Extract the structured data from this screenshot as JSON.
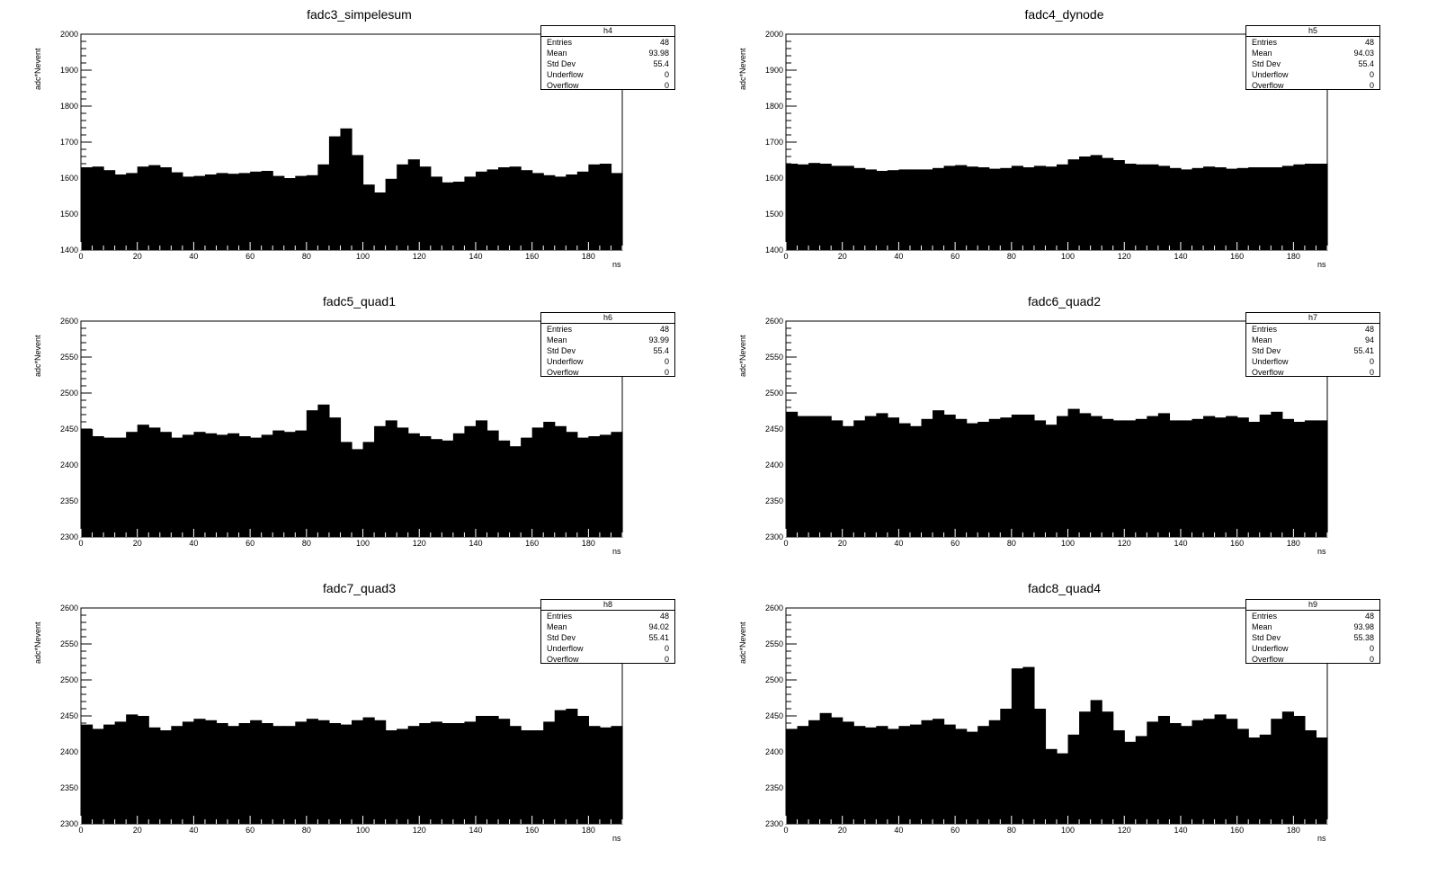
{
  "chart_data": [
    {
      "type": "histogram",
      "title": "fadc3_simpelesum",
      "xlabel": "ns",
      "ylabel": "adc*Nevent",
      "xlim": [
        0,
        192
      ],
      "ylim": [
        1400,
        2000
      ],
      "x_ticks": [
        0,
        20,
        40,
        60,
        80,
        100,
        120,
        140,
        160,
        180
      ],
      "y_ticks": [
        1400,
        1500,
        1600,
        1700,
        1800,
        1900,
        2000
      ],
      "bin_width": 4,
      "values": [
        1630,
        1632,
        1622,
        1610,
        1614,
        1632,
        1636,
        1630,
        1616,
        1604,
        1606,
        1610,
        1614,
        1612,
        1614,
        1618,
        1620,
        1606,
        1600,
        1606,
        1608,
        1638,
        1716,
        1738,
        1664,
        1582,
        1560,
        1598,
        1638,
        1652,
        1632,
        1604,
        1588,
        1590,
        1604,
        1618,
        1624,
        1630,
        1632,
        1622,
        1614,
        1608,
        1604,
        1610,
        1618,
        1638,
        1640,
        1614
      ],
      "stats": {
        "name": "h4",
        "rows": [
          [
            "Entries",
            "48"
          ],
          [
            "Mean",
            "93.98"
          ],
          [
            "Std Dev",
            "55.4"
          ],
          [
            "Underflow",
            "0"
          ],
          [
            "Overflow",
            "0"
          ]
        ]
      }
    },
    {
      "type": "histogram",
      "title": "fadc4_dynode",
      "xlabel": "ns",
      "ylabel": "adc*Nevent",
      "xlim": [
        0,
        192
      ],
      "ylim": [
        1400,
        2000
      ],
      "x_ticks": [
        0,
        20,
        40,
        60,
        80,
        100,
        120,
        140,
        160,
        180
      ],
      "y_ticks": [
        1400,
        1500,
        1600,
        1700,
        1800,
        1900,
        2000
      ],
      "bin_width": 4,
      "values": [
        1640,
        1638,
        1642,
        1640,
        1634,
        1634,
        1628,
        1624,
        1620,
        1622,
        1624,
        1624,
        1624,
        1628,
        1634,
        1636,
        1632,
        1630,
        1626,
        1628,
        1634,
        1630,
        1634,
        1632,
        1638,
        1652,
        1660,
        1664,
        1656,
        1650,
        1640,
        1638,
        1638,
        1634,
        1628,
        1624,
        1628,
        1632,
        1630,
        1626,
        1628,
        1630,
        1630,
        1630,
        1634,
        1638,
        1640,
        1640
      ],
      "stats": {
        "name": "h5",
        "rows": [
          [
            "Entries",
            "48"
          ],
          [
            "Mean",
            "94.03"
          ],
          [
            "Std Dev",
            "55.4"
          ],
          [
            "Underflow",
            "0"
          ],
          [
            "Overflow",
            "0"
          ]
        ]
      }
    },
    {
      "type": "histogram",
      "title": "fadc5_quad1",
      "xlabel": "ns",
      "ylabel": "adc*Nevent",
      "xlim": [
        0,
        192
      ],
      "ylim": [
        2300,
        2600
      ],
      "x_ticks": [
        0,
        20,
        40,
        60,
        80,
        100,
        120,
        140,
        160,
        180
      ],
      "y_ticks": [
        2300,
        2350,
        2400,
        2450,
        2500,
        2550,
        2600
      ],
      "bin_width": 4,
      "values": [
        2450,
        2440,
        2438,
        2438,
        2446,
        2456,
        2452,
        2446,
        2438,
        2442,
        2446,
        2444,
        2442,
        2444,
        2440,
        2438,
        2442,
        2448,
        2446,
        2448,
        2476,
        2484,
        2466,
        2432,
        2422,
        2432,
        2454,
        2462,
        2452,
        2444,
        2440,
        2436,
        2434,
        2444,
        2454,
        2462,
        2448,
        2434,
        2426,
        2438,
        2452,
        2460,
        2454,
        2446,
        2438,
        2440,
        2442,
        2446
      ],
      "stats": {
        "name": "h6",
        "rows": [
          [
            "Entries",
            "48"
          ],
          [
            "Mean",
            "93.99"
          ],
          [
            "Std Dev",
            "55.4"
          ],
          [
            "Underflow",
            "0"
          ],
          [
            "Overflow",
            "0"
          ]
        ]
      }
    },
    {
      "type": "histogram",
      "title": "fadc6_quad2",
      "xlabel": "ns",
      "ylabel": "adc*Nevent",
      "xlim": [
        0,
        192
      ],
      "ylim": [
        2300,
        2600
      ],
      "x_ticks": [
        0,
        20,
        40,
        60,
        80,
        100,
        120,
        140,
        160,
        180
      ],
      "y_ticks": [
        2300,
        2350,
        2400,
        2450,
        2500,
        2550,
        2600
      ],
      "bin_width": 4,
      "values": [
        2474,
        2468,
        2468,
        2468,
        2462,
        2454,
        2462,
        2468,
        2472,
        2466,
        2458,
        2454,
        2464,
        2476,
        2470,
        2464,
        2458,
        2460,
        2464,
        2466,
        2470,
        2470,
        2462,
        2456,
        2468,
        2478,
        2472,
        2468,
        2464,
        2462,
        2462,
        2464,
        2468,
        2472,
        2462,
        2462,
        2464,
        2468,
        2466,
        2468,
        2466,
        2460,
        2470,
        2474,
        2464,
        2460,
        2462,
        2462
      ],
      "stats": {
        "name": "h7",
        "rows": [
          [
            "Entries",
            "48"
          ],
          [
            "Mean",
            "94"
          ],
          [
            "Std Dev",
            "55.41"
          ],
          [
            "Underflow",
            "0"
          ],
          [
            "Overflow",
            "0"
          ]
        ]
      }
    },
    {
      "type": "histogram",
      "title": "fadc7_quad3",
      "xlabel": "ns",
      "ylabel": "adc*Nevent",
      "xlim": [
        0,
        192
      ],
      "ylim": [
        2300,
        2600
      ],
      "x_ticks": [
        0,
        20,
        40,
        60,
        80,
        100,
        120,
        140,
        160,
        180
      ],
      "y_ticks": [
        2300,
        2350,
        2400,
        2450,
        2500,
        2550,
        2600
      ],
      "bin_width": 4,
      "values": [
        2438,
        2432,
        2438,
        2442,
        2452,
        2450,
        2434,
        2430,
        2436,
        2442,
        2446,
        2444,
        2440,
        2436,
        2440,
        2444,
        2440,
        2436,
        2436,
        2442,
        2446,
        2444,
        2440,
        2438,
        2444,
        2448,
        2444,
        2430,
        2432,
        2436,
        2440,
        2442,
        2440,
        2440,
        2442,
        2450,
        2450,
        2446,
        2436,
        2430,
        2430,
        2442,
        2458,
        2460,
        2450,
        2436,
        2434,
        2436
      ],
      "stats": {
        "name": "h8",
        "rows": [
          [
            "Entries",
            "48"
          ],
          [
            "Mean",
            "94.02"
          ],
          [
            "Std Dev",
            "55.41"
          ],
          [
            "Underflow",
            "0"
          ],
          [
            "Overflow",
            "0"
          ]
        ]
      }
    },
    {
      "type": "histogram",
      "title": "fadc8_quad4",
      "xlabel": "ns",
      "ylabel": "adc*Nevent",
      "xlim": [
        0,
        192
      ],
      "ylim": [
        2300,
        2600
      ],
      "x_ticks": [
        0,
        20,
        40,
        60,
        80,
        100,
        120,
        140,
        160,
        180
      ],
      "y_ticks": [
        2300,
        2350,
        2400,
        2450,
        2500,
        2550,
        2600
      ],
      "bin_width": 4,
      "values": [
        2432,
        2436,
        2444,
        2454,
        2448,
        2442,
        2436,
        2434,
        2436,
        2432,
        2436,
        2438,
        2444,
        2446,
        2438,
        2432,
        2428,
        2436,
        2444,
        2460,
        2516,
        2518,
        2460,
        2404,
        2398,
        2424,
        2456,
        2472,
        2456,
        2430,
        2414,
        2422,
        2442,
        2450,
        2440,
        2436,
        2444,
        2446,
        2452,
        2446,
        2432,
        2420,
        2424,
        2446,
        2456,
        2450,
        2430,
        2420
      ],
      "stats": {
        "name": "h9",
        "rows": [
          [
            "Entries",
            "48"
          ],
          [
            "Mean",
            "93.98"
          ],
          [
            "Std Dev",
            "55.38"
          ],
          [
            "Underflow",
            "0"
          ],
          [
            "Overflow",
            "0"
          ]
        ]
      }
    }
  ]
}
